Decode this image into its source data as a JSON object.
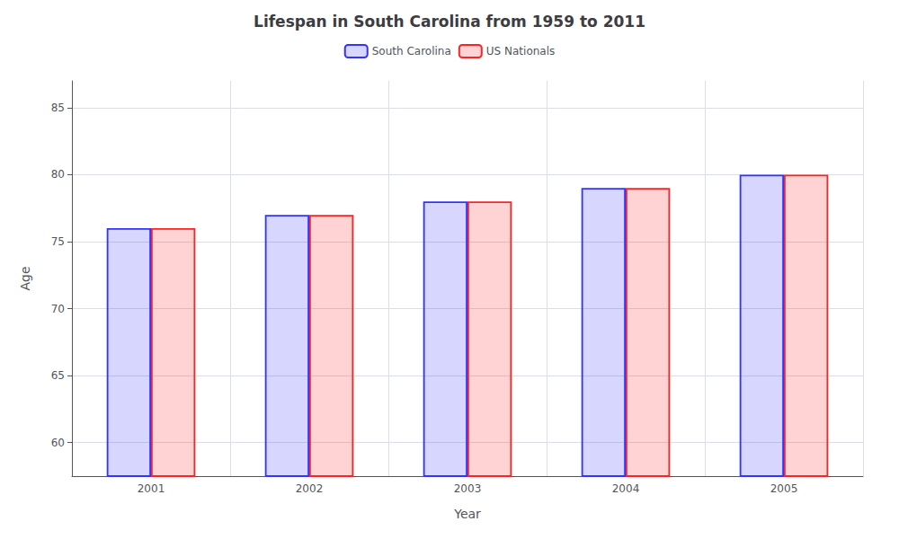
{
  "chart_data": {
    "type": "bar",
    "title": "Lifespan in South Carolina from 1959 to 2011",
    "x_label": "Year",
    "y_label": "Age",
    "categories": [
      2001,
      2002,
      2003,
      2004,
      2005
    ],
    "series": [
      {
        "name": "South Carolina",
        "color": "#3333ff",
        "values": [
          76,
          77,
          78,
          79,
          80
        ]
      },
      {
        "name": "US Nationals",
        "color": "#ff2222",
        "values": [
          76,
          77,
          78,
          79,
          80
        ]
      }
    ],
    "ylim": [
      57.5,
      87
    ],
    "yticks": [
      60,
      65,
      70,
      75,
      80,
      85
    ],
    "grid": true,
    "legend": "top"
  }
}
